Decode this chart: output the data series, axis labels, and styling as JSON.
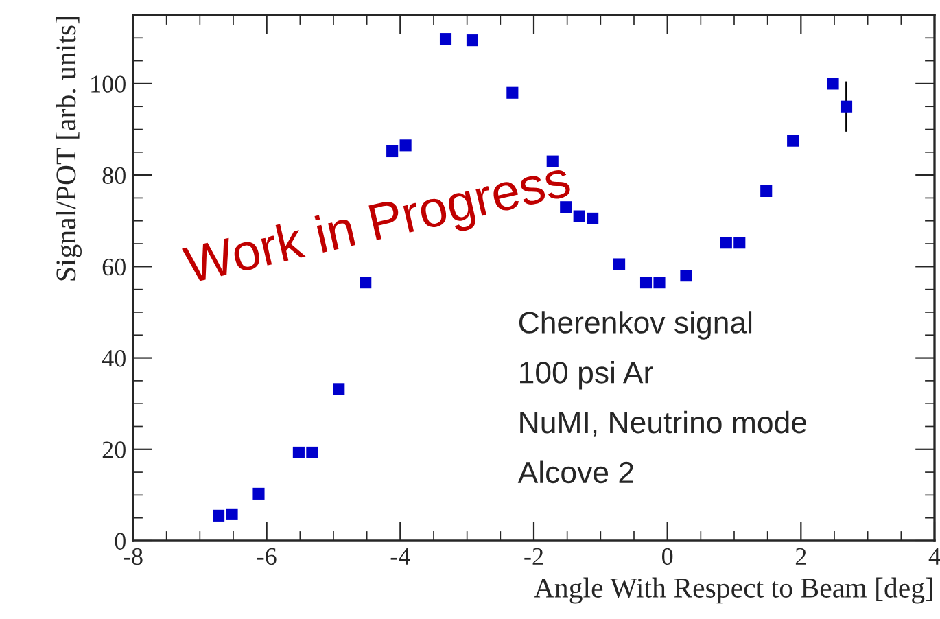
{
  "chart_data": {
    "type": "scatter",
    "xlabel": "Angle With Respect to Beam [deg]",
    "ylabel": "Signal/POT [arb. units]",
    "x": [
      -6.72,
      -6.52,
      -6.12,
      -5.52,
      -5.32,
      -4.92,
      -4.52,
      -4.12,
      -3.92,
      -3.32,
      -2.92,
      -2.32,
      -1.72,
      -1.52,
      -1.32,
      -1.12,
      -0.72,
      -0.32,
      -0.12,
      0.28,
      0.88,
      1.08,
      1.48,
      1.88,
      2.48,
      2.68
    ],
    "series": [
      {
        "color": "#0000cc",
        "values": [
          5.5,
          5.8,
          10.3,
          19.3,
          19.3,
          33.2,
          56.5,
          85.2,
          86.5,
          109.8,
          109.5,
          98,
          83,
          73,
          71,
          70.5,
          60.5,
          56.5,
          56.5,
          58,
          65.2,
          65.2,
          76.5,
          87.5,
          100,
          95
        ],
        "errors": [
          null,
          null,
          null,
          null,
          null,
          null,
          null,
          null,
          null,
          null,
          null,
          null,
          null,
          null,
          null,
          null,
          null,
          null,
          null,
          null,
          null,
          null,
          null,
          null,
          null,
          5.5
        ]
      }
    ],
    "xlim": [
      -8,
      4
    ],
    "xticks": [
      -8,
      -6,
      -4,
      -2,
      0,
      2,
      4
    ],
    "ylim": [
      0,
      115
    ],
    "yticks": [
      0,
      20,
      40,
      60,
      80,
      100
    ],
    "marker": "square",
    "grid": false,
    "legend": false,
    "annotations": [
      "Work in Progress",
      "Cherenkov signal",
      "100 psi Ar",
      "NuMI, Neutrino mode",
      "Alcove 2"
    ]
  }
}
